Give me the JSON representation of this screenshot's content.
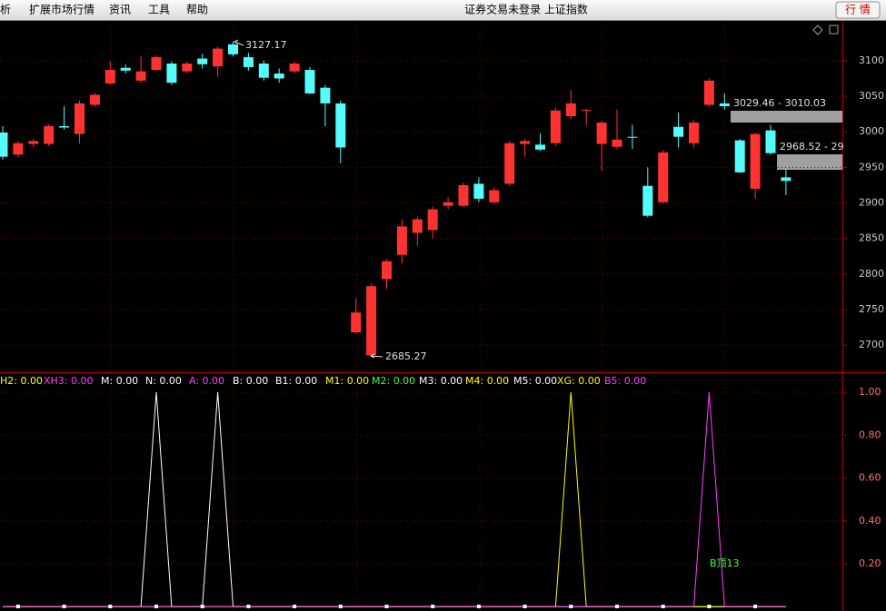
{
  "menu": {
    "items": [
      "分析",
      "扩展市场行情",
      "资讯",
      "工具",
      "帮助"
    ],
    "status": "证券交易未登录 上证指数",
    "button": "行 情"
  },
  "chart_data": [
    {
      "type": "candlestick",
      "up_color": "#ff3232",
      "down_color": "#54fcfc",
      "open": [
        2999,
        2968,
        2983,
        2983,
        3008,
        2997,
        3038,
        3068,
        3090,
        3072,
        3087,
        3096,
        3085,
        3103,
        3092,
        3123,
        3105,
        3096,
        3082,
        3085,
        3087,
        3062,
        3040,
        2718,
        2686,
        2793,
        2827,
        2858,
        2862,
        2896,
        2896,
        2927,
        2901,
        2927,
        2983,
        2982,
        2984,
        3022,
        3030,
        2983,
        2979,
        2993,
        2924,
        2901,
        3007,
        2984,
        3038,
        3040,
        2988,
        2920,
        3002,
        2936
      ],
      "high": [
        3008,
        2987,
        2990,
        3011,
        3036,
        3044,
        3055,
        3099,
        3095,
        3106,
        3108,
        3099,
        3099,
        3110,
        3120,
        3127.17,
        3111,
        3100,
        3089,
        3099,
        3091,
        3066,
        3044,
        2766,
        2787,
        2821,
        2877,
        2881,
        2895,
        2908,
        2929,
        2936,
        2922,
        2987,
        2990,
        2998,
        3034,
        3059,
        3032,
        3016,
        3031,
        3010,
        2950,
        2974,
        3027,
        3016,
        3075,
        3054,
        2990,
        2999,
        3010,
        2948
      ],
      "low": [
        2961,
        2964,
        2978,
        2980,
        3003,
        2984,
        3035,
        3066,
        3082,
        3069,
        3085,
        3066,
        3082,
        3089,
        3077,
        3106,
        3086,
        3072,
        3069,
        3082,
        3053,
        3008,
        2956,
        2717,
        2685.27,
        2779,
        2815,
        2840,
        2850,
        2891,
        2894,
        2901,
        2899,
        2924,
        2965,
        2973,
        2980,
        3018,
        3010,
        2945,
        2976,
        2976,
        2880,
        2899,
        2978,
        2978,
        3035,
        3031,
        2942,
        2906,
        2968,
        2911
      ],
      "close": [
        2965,
        2984,
        2987,
        3008,
        3006,
        3040,
        3052,
        3087,
        3086,
        3085,
        3105,
        3069,
        3096,
        3095,
        3117,
        3109,
        3091,
        3076,
        3075,
        3096,
        3054,
        3040,
        2978,
        2746,
        2783,
        2818,
        2867,
        2877,
        2891,
        2901,
        2925,
        2906,
        2918,
        2984,
        2987,
        2975,
        3030,
        3040,
        3031,
        3013,
        2989,
        2992,
        2882,
        2971,
        2993,
        3013,
        3072,
        3036,
        2943,
        2997,
        2970,
        2931
      ],
      "ylim": [
        2662,
        3156
      ],
      "yticks": [
        2700,
        2750,
        2800,
        2850,
        2900,
        2950,
        3000,
        3050,
        3100
      ],
      "grid": true,
      "annotations": [
        "3127.17",
        "2685.27",
        "3029.46 - 3010.03",
        "2968.52 - 29"
      ]
    },
    {
      "type": "line",
      "legend_items": [
        {
          "text": "H2: 0.00",
          "color": "#ffff00"
        },
        {
          "text": "XH3: 0.00",
          "color": "#ff40ff"
        },
        {
          "text": "M: 0.00",
          "color": "#ffffff"
        },
        {
          "text": "N: 0.00",
          "color": "#ffffff"
        },
        {
          "text": "A: 0.00",
          "color": "#ff40ff"
        },
        {
          "text": "B: 0.00",
          "color": "#ffffff"
        },
        {
          "text": "B1: 0.00",
          "color": "#ffffff"
        },
        {
          "text": "M1: 0.00",
          "color": "#ffff00"
        },
        {
          "text": "M2: 0.00",
          "color": "#40ff40"
        },
        {
          "text": "M3: 0.00",
          "color": "#ffffff"
        },
        {
          "text": "M4: 0.00",
          "color": "#ffff00"
        },
        {
          "text": "M5: 0.00",
          "color": "#ffffff"
        },
        {
          "text": "XG: 0.00",
          "color": "#ffff00"
        },
        {
          "text": "B5: 0.00",
          "color": "#ff40ff"
        }
      ],
      "series": [
        {
          "color": "#ffffff",
          "values": [
            0,
            0,
            0,
            0,
            0,
            0,
            0,
            0,
            0,
            0,
            1,
            0,
            0,
            0,
            1,
            0,
            0,
            0,
            0,
            0,
            0,
            0,
            0,
            0,
            0,
            0,
            0,
            0,
            0,
            0,
            0,
            0,
            0,
            0,
            0,
            0,
            0,
            0,
            0,
            0,
            0,
            0,
            0,
            0,
            0,
            0,
            0,
            0,
            0,
            0,
            0,
            0
          ]
        },
        {
          "color": "#ffff00",
          "values": [
            0,
            0,
            0,
            0,
            0,
            0,
            0,
            0,
            0,
            0,
            0,
            0,
            0,
            0,
            0,
            0,
            0,
            0,
            0,
            0,
            0,
            0,
            0,
            0,
            0,
            0,
            0,
            0,
            0,
            0,
            0,
            0,
            0,
            0,
            0,
            0,
            0,
            1,
            0,
            0,
            0,
            0,
            0,
            0,
            0,
            0,
            0,
            0,
            0,
            0,
            0,
            0
          ]
        },
        {
          "color": "#ff40ff",
          "values": [
            0,
            0,
            0,
            0,
            0,
            0,
            0,
            0,
            0,
            0,
            0,
            0,
            0,
            0,
            0,
            0,
            0,
            0,
            0,
            0,
            0,
            0,
            0,
            0,
            0,
            0,
            0,
            0,
            0,
            0,
            0,
            0,
            0,
            0,
            0,
            0,
            0,
            0,
            0,
            0,
            0,
            0,
            0,
            0,
            0,
            0,
            1,
            0,
            0,
            0,
            0,
            0
          ]
        }
      ],
      "ylim": [
        -0.02,
        1.085
      ],
      "yticks": [
        {
          "value": 0.2,
          "label": "0.20"
        },
        {
          "value": 0.4,
          "label": "0.40"
        },
        {
          "value": 0.6,
          "label": "0.60"
        },
        {
          "value": 0.8,
          "label": "0.80"
        },
        {
          "value": 1,
          "label": "1.00"
        }
      ],
      "grid": true,
      "annotation": "B顶13"
    }
  ]
}
